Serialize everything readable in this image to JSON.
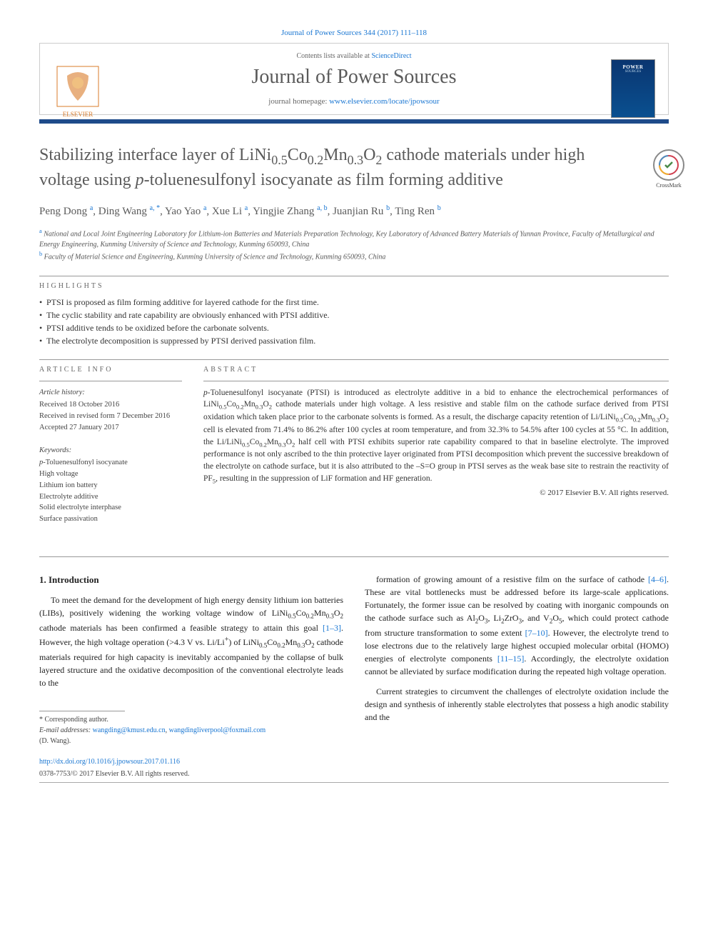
{
  "top_reference": "Journal of Power Sources 344 (2017) 111–118",
  "header": {
    "contents_text": "Contents lists available at ",
    "contents_link": "ScienceDirect",
    "journal_title": "Journal of Power Sources",
    "homepage_label": "journal homepage: ",
    "homepage_url": "www.elsevier.com/locate/jpowsour",
    "publisher_logo_label": "ELSEVIER",
    "cover_title": "POWER",
    "cover_sub": "SOURCES"
  },
  "crossmark_label": "CrossMark",
  "article": {
    "title_html": "Stabilizing interface layer of LiNi<sub>0.5</sub>Co<sub>0.2</sub>Mn<sub>0.3</sub>O<sub>2</sub> cathode materials under high voltage using <i>p</i>-toluenesulfonyl isocyanate as film forming additive",
    "authors_html": "Peng Dong <sup>a</sup>, Ding Wang <sup>a, *</sup>, Yao Yao <sup>a</sup>, Xue Li <sup>a</sup>, Yingjie Zhang <sup>a, b</sup>, Juanjian Ru <sup>b</sup>, Ting Ren <sup>b</sup>",
    "affiliations": [
      {
        "sup": "a",
        "text": "National and Local Joint Engineering Laboratory for Lithium-ion Batteries and Materials Preparation Technology, Key Laboratory of Advanced Battery Materials of Yunnan Province, Faculty of Metallurgical and Energy Engineering, Kunming University of Science and Technology, Kunming 650093, China"
      },
      {
        "sup": "b",
        "text": "Faculty of Material Science and Engineering, Kunming University of Science and Technology, Kunming 650093, China"
      }
    ]
  },
  "highlights_label": "highlights",
  "highlights": [
    "PTSI is proposed as film forming additive for layered cathode for the first time.",
    "The cyclic stability and rate capability are obviously enhanced with PTSI additive.",
    "PTSI additive tends to be oxidized before the carbonate solvents.",
    "The electrolyte decomposition is suppressed by PTSI derived passivation film."
  ],
  "article_info_label": "article info",
  "abstract_label": "abstract",
  "history": {
    "head": "Article history:",
    "received": "Received 18 October 2016",
    "revised": "Received in revised form 7 December 2016",
    "accepted": "Accepted 27 January 2017"
  },
  "keywords": {
    "head": "Keywords:",
    "items": [
      "p-Toluenesulfonyl isocyanate",
      "High voltage",
      "Lithium ion battery",
      "Electrolyte additive",
      "Solid electrolyte interphase",
      "Surface passivation"
    ]
  },
  "abstract_html": "<i>p</i>-Toluenesulfonyl isocyanate (PTSI) is introduced as electrolyte additive in a bid to enhance the electrochemical performances of LiNi<sub>0.5</sub>Co<sub>0.2</sub>Mn<sub>0.3</sub>O<sub>2</sub> cathode materials under high voltage. A less resistive and stable film on the cathode surface derived from PTSI oxidation which taken place prior to the carbonate solvents is formed. As a result, the discharge capacity retention of Li/LiNi<sub>0.5</sub>Co<sub>0.2</sub>Mn<sub>0.3</sub>O<sub>2</sub> cell is elevated from 71.4% to 86.2% after 100 cycles at room temperature, and from 32.3% to 54.5% after 100 cycles at 55 °C. In addition, the Li/LiNi<sub>0.5</sub>Co<sub>0.2</sub>Mn<sub>0.3</sub>O<sub>2</sub> half cell with PTSI exhibits superior rate capability compared to that in baseline electrolyte. The improved performance is not only ascribed to the thin protective layer originated from PTSI decomposition which prevent the successive breakdown of the electrolyte on cathode surface, but it is also attributed to the –S=O group in PTSI serves as the weak base site to restrain the reactivity of PF<sub>5</sub>, resulting in the suppression of LiF formation and HF generation.",
  "abstract_copyright": "© 2017 Elsevier B.V. All rights reserved.",
  "intro": {
    "heading": "1. Introduction",
    "col1_html": "To meet the demand for the development of high energy density lithium ion batteries (LIBs), positively widening the working voltage window of LiNi<sub>0.5</sub>Co<sub>0.2</sub>Mn<sub>0.3</sub>O<sub>2</sub> cathode materials has been confirmed a feasible strategy to attain this goal <span class='refnum'>[1–3]</span>. However, the high voltage operation (&gt;4.3 V vs. Li/Li<sup>+</sup>) of LiNi<sub>0.5</sub>Co<sub>0.2</sub>Mn<sub>0.3</sub>O<sub>2</sub> cathode materials required for high capacity is inevitably accompanied by the collapse of bulk layered structure and the oxidative decomposition of the conventional electrolyte leads to the",
    "col2_p1_html": "formation of growing amount of a resistive film on the surface of cathode <span class='refnum'>[4–6]</span>. These are vital bottlenecks must be addressed before its large-scale applications. Fortunately, the former issue can be resolved by coating with inorganic compounds on the cathode surface such as Al<sub>2</sub>O<sub>3</sub>, Li<sub>2</sub>ZrO<sub>3</sub>, and V<sub>2</sub>O<sub>5</sub>, which could protect cathode from structure transformation to some extent <span class='refnum'>[7–10]</span>. However, the electrolyte trend to lose electrons due to the relatively large highest occupied molecular orbital (HOMO) energies of electrolyte components <span class='refnum'>[11–15]</span>. Accordingly, the electrolyte oxidation cannot be alleviated by surface modification during the repeated high voltage operation.",
    "col2_p2_html": "Current strategies to circumvent the challenges of electrolyte oxidation include the design and synthesis of inherently stable electrolytes that possess a high anodic stability and the"
  },
  "footnote": {
    "corresponding": "* Corresponding author.",
    "email_label": "E-mail addresses:",
    "email1": "wangding@kmust.edu.cn",
    "email2": "wangdingliverpool@foxmail.com",
    "author": "(D. Wang)."
  },
  "doi": "http://dx.doi.org/10.1016/j.jpowsour.2017.01.116",
  "issn": "0378-7753/© 2017 Elsevier B.V. All rights reserved.",
  "colors": {
    "link": "#1976d2",
    "bar": "#1e4b8a",
    "heading": "#5a5a5a"
  }
}
